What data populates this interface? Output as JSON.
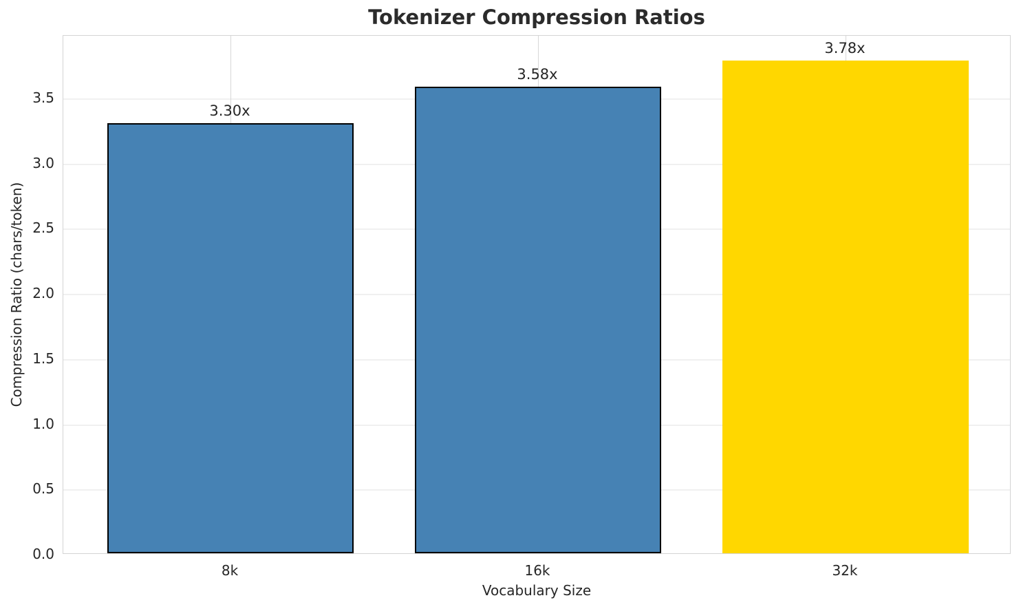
{
  "chart_data": {
    "type": "bar",
    "title": "Tokenizer Compression Ratios",
    "xlabel": "Vocabulary Size",
    "ylabel": "Compression Ratio (chars/token)",
    "categories": [
      "8k",
      "16k",
      "32k"
    ],
    "values": [
      3.3,
      3.58,
      3.78
    ],
    "bar_labels": [
      "3.30x",
      "3.58x",
      "3.78x"
    ],
    "bar_colors": [
      "#4682B4",
      "#4682B4",
      "#FFD700"
    ],
    "bar_edge_colors": [
      "#000000",
      "#000000",
      null
    ],
    "ytick_labels": [
      "0.0",
      "0.5",
      "1.0",
      "1.5",
      "2.0",
      "2.5",
      "3.0",
      "3.5"
    ],
    "ytick_values": [
      0.0,
      0.5,
      1.0,
      1.5,
      2.0,
      2.5,
      3.0,
      3.5
    ],
    "ylim": [
      0,
      3.98
    ],
    "grid": true,
    "legend": false,
    "colors": {
      "base_bar": "#4682B4",
      "highlight_bar": "#FFD700",
      "text": "#262626",
      "spine": "#d4d4d4",
      "h_grid": "#f0f0f0",
      "v_grid": "#d7d7d7"
    }
  }
}
